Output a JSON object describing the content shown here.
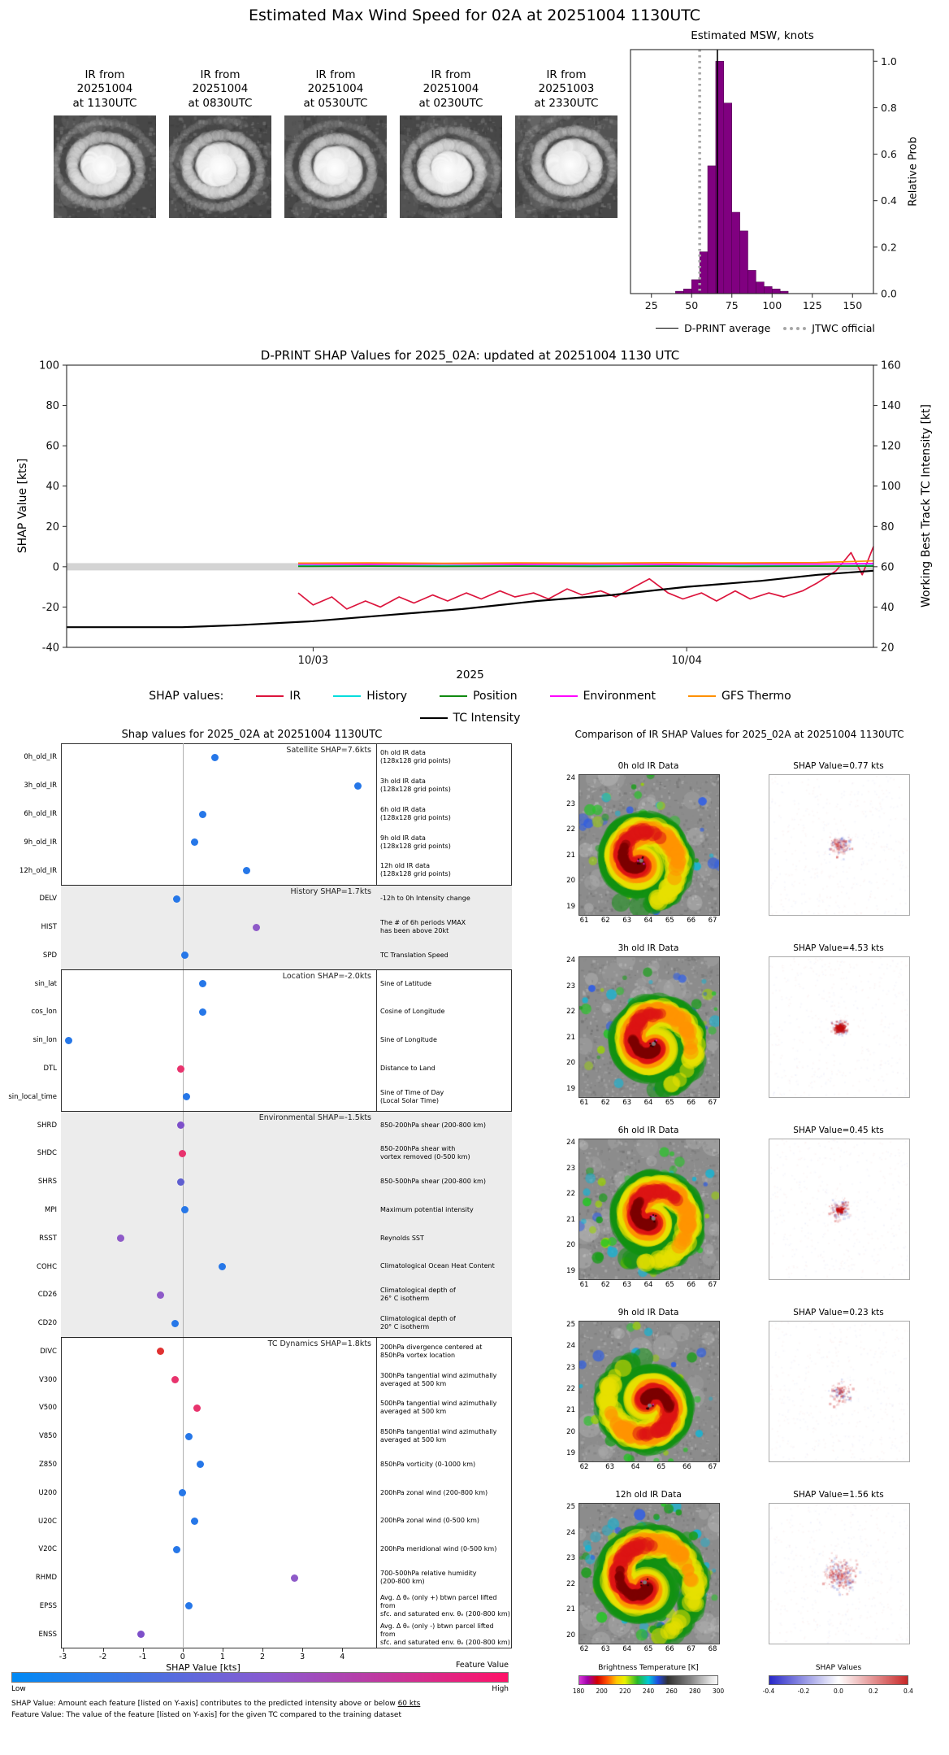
{
  "page": {
    "title": "Estimated Max Wind Speed for 02A at 20251004 1130UTC"
  },
  "thumbs": [
    {
      "label": "IR from\n20251004\nat 1130UTC"
    },
    {
      "label": "IR from\n20251004\nat 0830UTC"
    },
    {
      "label": "IR from\n20251004\nat 0530UTC"
    },
    {
      "label": "IR from\n20251004\nat 0230UTC"
    },
    {
      "label": "IR from\n20251003\nat 2330UTC"
    }
  ],
  "chart_data": [
    {
      "id": "estimated-msw-histogram",
      "type": "bar",
      "title": "Estimated MSW, knots",
      "ylabel": "Relative Prob",
      "xticks": [
        25,
        50,
        75,
        100,
        125,
        150
      ],
      "yticks": [
        "0.0",
        "0.2",
        "0.4",
        "0.6",
        "0.8",
        "1.0"
      ],
      "xlim": [
        12,
        163
      ],
      "ylim": [
        0,
        1.05
      ],
      "bin_start": 40,
      "bin_width": 5,
      "heights": [
        0.01,
        0.02,
        0.06,
        0.18,
        0.55,
        1.0,
        0.82,
        0.35,
        0.27,
        0.1,
        0.05,
        0.03,
        0.02,
        0.01
      ],
      "bar_color": "#800080",
      "vlines": {
        "dprint_average": 66,
        "jtwc_official": 55
      },
      "legend": [
        {
          "label": "D-PRINT average",
          "color": "#000000",
          "style": "solid"
        },
        {
          "label": "JTWC official",
          "color": "#a6a6a6",
          "style": "dotted"
        }
      ]
    },
    {
      "id": "shap-timeline",
      "type": "line",
      "title": "D-PRINT SHAP Values for 2025_02A: updated at 20251004 1130 UTC",
      "ylabel_left": "SHAP Value [kts]",
      "ylabel_right": "Working Best Track TC Intensity [kt]",
      "xlabel": "2025",
      "yticks_left": [
        -40,
        -20,
        0,
        20,
        40,
        60,
        80,
        100
      ],
      "yticks_right": [
        20,
        40,
        60,
        80,
        100,
        120,
        140,
        160
      ],
      "ylim_left": [
        -40,
        100
      ],
      "ylim_right": [
        20,
        160
      ],
      "xticks": [
        {
          "t": 0,
          "label": "10/03"
        },
        {
          "t": 1,
          "label": "10/04"
        }
      ],
      "xlim_days": [
        -0.66,
        1.5
      ],
      "legend_label": "SHAP values:",
      "series": [
        {
          "name": "IR",
          "color": "#dc143c",
          "axis": "left",
          "x": [
            -0.04,
            0,
            0.05,
            0.09,
            0.14,
            0.18,
            0.23,
            0.27,
            0.32,
            0.36,
            0.41,
            0.45,
            0.5,
            0.54,
            0.59,
            0.63,
            0.68,
            0.72,
            0.77,
            0.81,
            0.86,
            0.9,
            0.95,
            0.99,
            1.04,
            1.08,
            1.13,
            1.17,
            1.22,
            1.26,
            1.31,
            1.35,
            1.4,
            1.44,
            1.47,
            1.5
          ],
          "y": [
            -13,
            -19,
            -15,
            -21,
            -17,
            -20,
            -15,
            -18,
            -14,
            -17,
            -13,
            -16,
            -12,
            -15,
            -13,
            -16,
            -11,
            -14,
            -12,
            -15,
            -10,
            -6,
            -13,
            -16,
            -13,
            -17,
            -12,
            -16,
            -13,
            -15,
            -12,
            -8,
            -2,
            7,
            -4,
            10
          ]
        },
        {
          "name": "History",
          "color": "#00dddd",
          "axis": "left",
          "x": [
            -0.04,
            0.15,
            0.35,
            0.55,
            0.75,
            0.95,
            1.15,
            1.35,
            1.5
          ],
          "y": [
            0.5,
            0.4,
            0.5,
            0.4,
            0.5,
            0.4,
            0.5,
            0.4,
            0.6
          ]
        },
        {
          "name": "Position",
          "color": "#108a10",
          "axis": "left",
          "x": [
            -0.04,
            0.15,
            0.35,
            0.55,
            0.75,
            0.95,
            1.15,
            1.35,
            1.5
          ],
          "y": [
            0.2,
            0.3,
            0.2,
            0.3,
            0.2,
            0.3,
            0.2,
            0.3,
            0.3
          ]
        },
        {
          "name": "Environment",
          "color": "#ff00ff",
          "axis": "left",
          "x": [
            -0.04,
            0.15,
            0.35,
            0.55,
            0.75,
            0.95,
            1.15,
            1.35,
            1.5
          ],
          "y": [
            1.3,
            1.2,
            1.4,
            1.2,
            1.3,
            1.2,
            1.4,
            1.3,
            1.6
          ]
        },
        {
          "name": "GFS Thermo",
          "color": "#ff9000",
          "axis": "left",
          "x": [
            -0.04,
            0.15,
            0.35,
            0.55,
            0.75,
            0.95,
            1.15,
            1.35,
            1.5
          ],
          "y": [
            1.8,
            1.9,
            1.7,
            1.9,
            1.8,
            2.0,
            1.9,
            2.1,
            2.9
          ]
        },
        {
          "name": "TC Intensity",
          "color": "#000000",
          "axis": "right",
          "x": [
            -0.66,
            -0.5,
            -0.35,
            -0.2,
            0,
            0.2,
            0.4,
            0.6,
            0.8,
            1,
            1.2,
            1.35,
            1.5
          ],
          "y": [
            30,
            30,
            30,
            31,
            33,
            36,
            39,
            43,
            46,
            50,
            53,
            56,
            58
          ]
        }
      ]
    },
    {
      "id": "shap-dotplot",
      "type": "scatter",
      "title": "Shap values for 2025_02A at 20251004 1130UTC",
      "xlabel": "SHAP Value [kts]",
      "xticks": [
        -3,
        -2,
        -1,
        0,
        1,
        2,
        3,
        4
      ],
      "xlim": [
        -3.05,
        4.85
      ],
      "groups": [
        {
          "header": "Satellite SHAP=7.6kts",
          "shaded": false,
          "rows": [
            {
              "label": "0h_old_IR",
              "value": 0.8,
              "color": "#2677e8",
              "desc": "0h old IR data\n(128x128 grid points)"
            },
            {
              "label": "3h_old_IR",
              "value": 4.4,
              "color": "#2677e8",
              "desc": "3h old IR data\n(128x128 grid points)"
            },
            {
              "label": "6h_old_IR",
              "value": 0.5,
              "color": "#2677e8",
              "desc": "6h old IR data\n(128x128 grid points)"
            },
            {
              "label": "9h_old_IR",
              "value": 0.3,
              "color": "#2677e8",
              "desc": "9h old IR data\n(128x128 grid points)"
            },
            {
              "label": "12h_old_IR",
              "value": 1.6,
              "color": "#2677e8",
              "desc": "12h old IR data\n(128x128 grid points)"
            }
          ]
        },
        {
          "header": "History SHAP=1.7kts",
          "shaded": true,
          "rows": [
            {
              "label": "DELV",
              "value": -0.15,
              "color": "#2677e8",
              "desc": "-12h to 0h Intensity change"
            },
            {
              "label": "HIST",
              "value": 1.85,
              "color": "#8e5ac8",
              "desc": "The # of 6h periods VMAX\nhas been above 20kt"
            },
            {
              "label": "SPD",
              "value": 0.05,
              "color": "#2677e8",
              "desc": "TC Translation Speed"
            }
          ]
        },
        {
          "header": "Location SHAP=-2.0kts",
          "shaded": false,
          "rows": [
            {
              "label": "sin_lat",
              "value": 0.5,
              "color": "#2677e8",
              "desc": "Sine of Latitude"
            },
            {
              "label": "cos_lon",
              "value": 0.5,
              "color": "#2677e8",
              "desc": "Cosine of Longitude"
            },
            {
              "label": "sin_lon",
              "value": -2.85,
              "color": "#2677e8",
              "desc": "Sine of Longitude"
            },
            {
              "label": "DTL",
              "value": -0.05,
              "color": "#e8336d",
              "desc": "Distance to Land"
            },
            {
              "label": "sin_local_time",
              "value": 0.1,
              "color": "#2677e8",
              "desc": "Sine of Time of Day\n(Local Solar Time)"
            }
          ]
        },
        {
          "header": "Environmental SHAP=-1.5kts",
          "shaded": true,
          "rows": [
            {
              "label": "SHRD",
              "value": -0.05,
              "color": "#7d4fc9",
              "desc": "850-200hPa shear (200-800 km)"
            },
            {
              "label": "SHDC",
              "value": 0.0,
              "color": "#e8336d",
              "desc": "850-200hPa shear with\nvortex removed (0-500 km)"
            },
            {
              "label": "SHRS",
              "value": -0.05,
              "color": "#5f5fd0",
              "desc": "850-500hPa shear (200-800 km)"
            },
            {
              "label": "MPI",
              "value": 0.05,
              "color": "#2677e8",
              "desc": "Maximum potential intensity"
            },
            {
              "label": "RSST",
              "value": -1.55,
              "color": "#8e5ac8",
              "desc": "Reynolds SST"
            },
            {
              "label": "COHC",
              "value": 1.0,
              "color": "#2677e8",
              "desc": "Climatological Ocean Heat Content"
            },
            {
              "label": "CD26",
              "value": -0.55,
              "color": "#8e5ac8",
              "desc": "Climatological depth of\n26° C isotherm"
            },
            {
              "label": "CD20",
              "value": -0.2,
              "color": "#2677e8",
              "desc": "Climatological depth of\n20° C isotherm"
            }
          ]
        },
        {
          "header": "TC Dynamics SHAP=1.8kts",
          "shaded": false,
          "rows": [
            {
              "label": "DIVC",
              "value": -0.55,
              "color": "#e03131",
              "desc": "200hPa divergence centered at\n850hPa vortex location"
            },
            {
              "label": "V300",
              "value": -0.2,
              "color": "#e8336d",
              "desc": "300hPa tangential wind azimuthally\naveraged at 500 km"
            },
            {
              "label": "V500",
              "value": 0.35,
              "color": "#e8336d",
              "desc": "500hPa tangential wind azimuthally\naveraged at 500 km"
            },
            {
              "label": "V850",
              "value": 0.15,
              "color": "#2677e8",
              "desc": "850hPa tangential wind azimuthally\naveraged at 500 km"
            },
            {
              "label": "Z850",
              "value": 0.45,
              "color": "#2677e8",
              "desc": "850hPa vorticity (0-1000 km)"
            },
            {
              "label": "U200",
              "value": 0.0,
              "color": "#2677e8",
              "desc": "200hPa zonal wind (200-800 km)"
            },
            {
              "label": "U20C",
              "value": 0.3,
              "color": "#2677e8",
              "desc": "200hPa zonal wind (0-500 km)"
            },
            {
              "label": "V20C",
              "value": -0.15,
              "color": "#2677e8",
              "desc": "200hPa meridional wind (0-500 km)"
            },
            {
              "label": "RHMD",
              "value": 2.8,
              "color": "#8e5ac8",
              "desc": "700-500hPa relative humidity\n(200-800 km)"
            },
            {
              "label": "EPSS",
              "value": 0.15,
              "color": "#2677e8",
              "desc": "Avg. Δ θₑ (only +) btwn parcel lifted from\nsfc. and saturated env. θₑ (200-800 km)"
            },
            {
              "label": "ENSS",
              "value": -1.05,
              "color": "#7d4fc9",
              "desc": "Avg. Δ θₑ (only -) btwn parcel lifted from\nsfc. and saturated env. θₑ (200-800 km)"
            }
          ]
        }
      ]
    },
    {
      "id": "ir-shap-comparison",
      "type": "heatmap",
      "title": "Comparison of IR SHAP Values for 2025_02A at 20251004 1130UTC",
      "rows": [
        {
          "ir_title": "0h old IR Data",
          "shap_title": "SHAP Value=0.77 kts",
          "xticks": [
            61,
            62,
            63,
            64,
            65,
            66,
            67
          ],
          "yticks": [
            24,
            23,
            22,
            21,
            20,
            19
          ]
        },
        {
          "ir_title": "3h old IR Data",
          "shap_title": "SHAP Value=4.53 kts",
          "xticks": [
            61,
            62,
            63,
            64,
            65,
            66,
            67
          ],
          "yticks": [
            24,
            23,
            22,
            21,
            20,
            19
          ]
        },
        {
          "ir_title": "6h old IR Data",
          "shap_title": "SHAP Value=0.45 kts",
          "xticks": [
            61,
            62,
            63,
            64,
            65,
            66,
            67
          ],
          "yticks": [
            24,
            23,
            22,
            21,
            20,
            19
          ]
        },
        {
          "ir_title": "9h old IR Data",
          "shap_title": "SHAP Value=0.23 kts",
          "xticks": [
            62,
            63,
            64,
            65,
            66,
            67
          ],
          "yticks": [
            25,
            24,
            23,
            22,
            21,
            20,
            19
          ]
        },
        {
          "ir_title": "12h old IR Data",
          "shap_title": "SHAP Value=1.56 kts",
          "xticks": [
            62,
            63,
            64,
            65,
            66,
            67,
            68
          ],
          "yticks": [
            25,
            24,
            23,
            22,
            21,
            20
          ]
        }
      ],
      "bt_colorbar": {
        "title": "Brightness Temperature [K]",
        "ticks": [
          180,
          200,
          220,
          240,
          260,
          280,
          300
        ]
      },
      "shap_colorbar": {
        "title": "SHAP Values",
        "ticks": [
          "-0.4",
          "-0.2",
          "0.0",
          "0.2",
          "0.4"
        ]
      }
    }
  ],
  "feature_colorbar": {
    "title": "Feature Value",
    "low": "Low",
    "high": "High"
  },
  "footnotes": {
    "shap_prefix": "SHAP Value: Amount each feature [listed on Y-axis] contributes to the predicted intensity above or below ",
    "shap_underlined": "60 kts",
    "feature": "Feature Value: The value of the feature [listed on Y-axis] for the given TC compared to the training dataset"
  }
}
